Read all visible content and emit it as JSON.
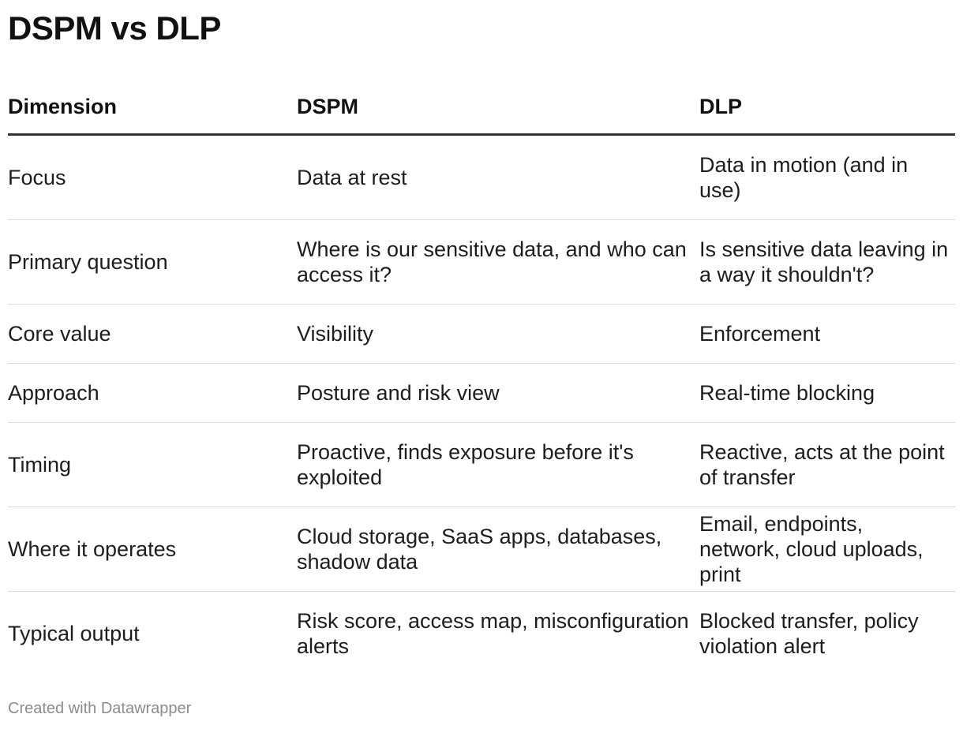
{
  "title": "DSPM vs DLP",
  "table": {
    "headers": [
      "Dimension",
      "DSPM",
      "DLP"
    ],
    "rows": [
      {
        "dimension": "Focus",
        "dspm": "Data at rest",
        "dlp": "Data in motion (and in use)"
      },
      {
        "dimension": "Primary question",
        "dspm": "Where is our sensitive data, and who can access it?",
        "dlp": "Is sensitive data leaving in a way it shouldn't?"
      },
      {
        "dimension": "Core value",
        "dspm": "Visibility",
        "dlp": "Enforcement"
      },
      {
        "dimension": "Approach",
        "dspm": "Posture and risk view",
        "dlp": "Real-time blocking"
      },
      {
        "dimension": "Timing",
        "dspm": "Proactive, finds exposure before it's exploited",
        "dlp": "Reactive, acts at the point of transfer"
      },
      {
        "dimension": "Where it operates",
        "dspm": "Cloud storage, SaaS apps, databases, shadow data",
        "dlp": "Email, endpoints, network, cloud uploads, print"
      },
      {
        "dimension": "Typical output",
        "dspm": "Risk score, access map, misconfiguration alerts",
        "dlp": "Blocked transfer, policy violation alert"
      }
    ]
  },
  "footer": "Created with Datawrapper"
}
